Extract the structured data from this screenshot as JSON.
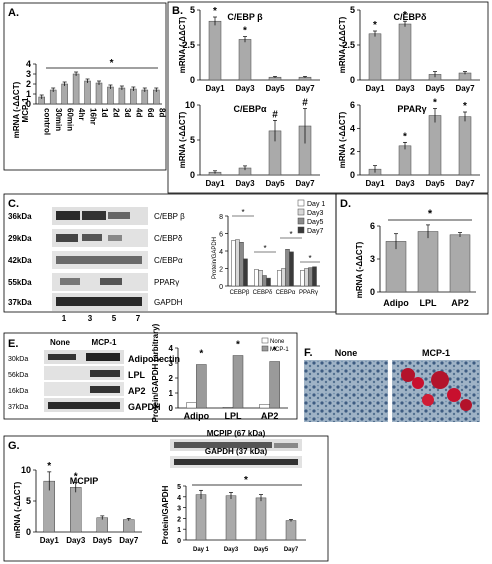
{
  "panels": {
    "A": {
      "letter": "A.",
      "ylabel": "mRNA (-ΔΔCT)\nMCP-1"
    },
    "B": {
      "letter": "B."
    },
    "C": {
      "letter": "C.",
      "ylabel": "Protein/GAPDH"
    },
    "D": {
      "letter": "D.",
      "ylabel": "mRNA (-ΔΔCT)"
    },
    "E": {
      "letter": "E.",
      "ylabel": "Protein/GAPDH (arbitrary)",
      "top_labels": [
        "None",
        "MCP-1"
      ]
    },
    "F": {
      "letter": "F.",
      "labels": [
        "None",
        "MCP-1"
      ]
    },
    "G": {
      "letter": "G.",
      "ylabel_left": "mRNA (-ΔΔCT)",
      "ylabel_right": "Protein/GAPDH"
    }
  },
  "blots": {
    "C": {
      "labels": [
        "C/EBP β",
        "C/EBPδ",
        "C/EBPα",
        "PPARγ",
        "GAPDH"
      ],
      "kda": [
        "36kDa",
        "29kDa",
        "42kDa",
        "55kDa",
        "37kDa"
      ],
      "lanes": [
        "1",
        "3",
        "5",
        "7"
      ]
    },
    "E": {
      "labels": [
        "Adiponectin",
        "LPL",
        "AP2",
        "GAPDH"
      ],
      "kda": [
        "30kDa",
        "56kDa",
        "16kDa",
        "37kDa"
      ]
    },
    "G": {
      "labels": [
        "MCPIP (67 kDa)",
        "GAPDH (37 kDa)"
      ]
    }
  },
  "chart_data": [
    {
      "id": "A",
      "type": "bar",
      "categories": [
        "control",
        "30min",
        "60min",
        "4hr",
        "16hr",
        "1d",
        "2d",
        "3d",
        "4d",
        "6d",
        "8d"
      ],
      "values": [
        0.7,
        1.4,
        2.0,
        3.0,
        2.3,
        2.1,
        1.7,
        1.6,
        1.5,
        1.4,
        1.4
      ],
      "errors": [
        0.2,
        0.2,
        0.2,
        0.2,
        0.2,
        0.2,
        0.2,
        0.2,
        0.2,
        0.2,
        0.2
      ],
      "ylim": [
        0,
        4
      ],
      "yticks": [
        "0",
        "1",
        "2",
        "3",
        "4"
      ],
      "annotations": [
        "*"
      ]
    },
    {
      "id": "B1",
      "type": "bar",
      "title": "C/EBP β",
      "categories": [
        "Day1",
        "Day3",
        "Day5",
        "Day7"
      ],
      "values": [
        4.2,
        2.9,
        0.2,
        0.2
      ],
      "errors": [
        0.3,
        0.2,
        0.05,
        0.05
      ],
      "ylim": [
        0,
        5
      ],
      "yticks": [
        "0",
        "2.5",
        "5"
      ],
      "ylabel": "mRNA (-ΔΔCT)",
      "markers": [
        "*",
        "*",
        "",
        ""
      ]
    },
    {
      "id": "B2",
      "type": "bar",
      "title": "C/EBPδ",
      "categories": [
        "Day1",
        "Day3",
        "Day5",
        "Day7"
      ],
      "values": [
        3.3,
        4.0,
        0.4,
        0.5
      ],
      "errors": [
        0.2,
        0.2,
        0.2,
        0.1
      ],
      "ylim": [
        0,
        5
      ],
      "yticks": [
        "0",
        "2.5",
        "5"
      ],
      "ylabel": "mRNA (-ΔΔCT)",
      "markers": [
        "*",
        "*",
        "",
        ""
      ]
    },
    {
      "id": "B3",
      "type": "bar",
      "title": "C/EBPα",
      "categories": [
        "Day1",
        "Day3",
        "Day5",
        "Day7"
      ],
      "values": [
        0.4,
        1.0,
        6.3,
        7.0
      ],
      "errors": [
        0.2,
        0.3,
        1.5,
        2.5
      ],
      "ylim": [
        0,
        10
      ],
      "yticks": [
        "0",
        "5",
        "10"
      ],
      "ylabel": "mRNA (-ΔΔCT)",
      "markers": [
        "",
        "",
        "#",
        "#"
      ]
    },
    {
      "id": "B4",
      "type": "bar",
      "title": "PPARγ",
      "categories": [
        "Day1",
        "Day3",
        "Day5",
        "Day7"
      ],
      "values": [
        0.5,
        2.5,
        5.1,
        5.0
      ],
      "errors": [
        0.3,
        0.3,
        0.6,
        0.4
      ],
      "ylim": [
        0,
        6
      ],
      "yticks": [
        "0",
        "2",
        "4",
        "6"
      ],
      "ylabel": "mRNA (-ΔΔCT)",
      "markers": [
        "",
        "*",
        "*",
        "*"
      ]
    },
    {
      "id": "C",
      "type": "bar",
      "categories": [
        "CEBPβ",
        "CEBPδ",
        "CEBPα",
        "PPARγ"
      ],
      "series": [
        {
          "name": "Day 1",
          "values": [
            5.2,
            1.9,
            1.8,
            1.8
          ]
        },
        {
          "name": "Day3",
          "values": [
            5.3,
            1.8,
            2.0,
            2.0
          ]
        },
        {
          "name": "Day5",
          "values": [
            5.0,
            1.2,
            4.2,
            2.1
          ]
        },
        {
          "name": "Day7",
          "values": [
            3.1,
            0.9,
            3.9,
            2.2
          ]
        }
      ],
      "ylim": [
        0,
        8
      ],
      "yticks": [
        "0",
        "2",
        "4",
        "6",
        "8"
      ],
      "annotations": [
        "*",
        "*",
        "*",
        "*"
      ],
      "legend": "top-right"
    },
    {
      "id": "D",
      "type": "bar",
      "categories": [
        "Adipo",
        "LPL",
        "AP2"
      ],
      "values": [
        4.6,
        5.5,
        5.2
      ],
      "errors": [
        0.7,
        0.6,
        0.2
      ],
      "ylim": [
        0,
        6
      ],
      "yticks": [
        "0",
        "3",
        "6"
      ],
      "annotations": [
        "*"
      ]
    },
    {
      "id": "E",
      "type": "bar",
      "categories": [
        "Adipo",
        "LPL",
        "AP2"
      ],
      "series": [
        {
          "name": "None",
          "values": [
            0.35,
            0.05,
            0.25
          ]
        },
        {
          "name": "MCP-1",
          "values": [
            2.9,
            3.5,
            3.1
          ]
        }
      ],
      "ylim": [
        0,
        4
      ],
      "yticks": [
        "0",
        "1",
        "2",
        "3",
        "4"
      ],
      "markers": [
        "*",
        "*",
        "*"
      ],
      "legend": "top-right"
    },
    {
      "id": "G1",
      "type": "bar",
      "title": "MCPIP",
      "categories": [
        "Day1",
        "Day3",
        "Day5",
        "Day7"
      ],
      "values": [
        8.2,
        7.2,
        2.3,
        2.0
      ],
      "errors": [
        1.5,
        0.8,
        0.3,
        0.2
      ],
      "ylim": [
        0,
        10
      ],
      "yticks": [
        "0",
        "5",
        "10"
      ],
      "markers": [
        "*",
        "*",
        "",
        ""
      ]
    },
    {
      "id": "G2",
      "type": "bar",
      "categories": [
        "Day 1",
        "Day3",
        "Day5",
        "Day7"
      ],
      "values": [
        4.2,
        4.1,
        3.9,
        1.8
      ],
      "errors": [
        0.4,
        0.3,
        0.3,
        0.1
      ],
      "ylim": [
        0,
        5
      ],
      "yticks": [
        "0",
        "1",
        "2",
        "3",
        "4",
        "5"
      ],
      "annotations": [
        "*"
      ]
    }
  ]
}
